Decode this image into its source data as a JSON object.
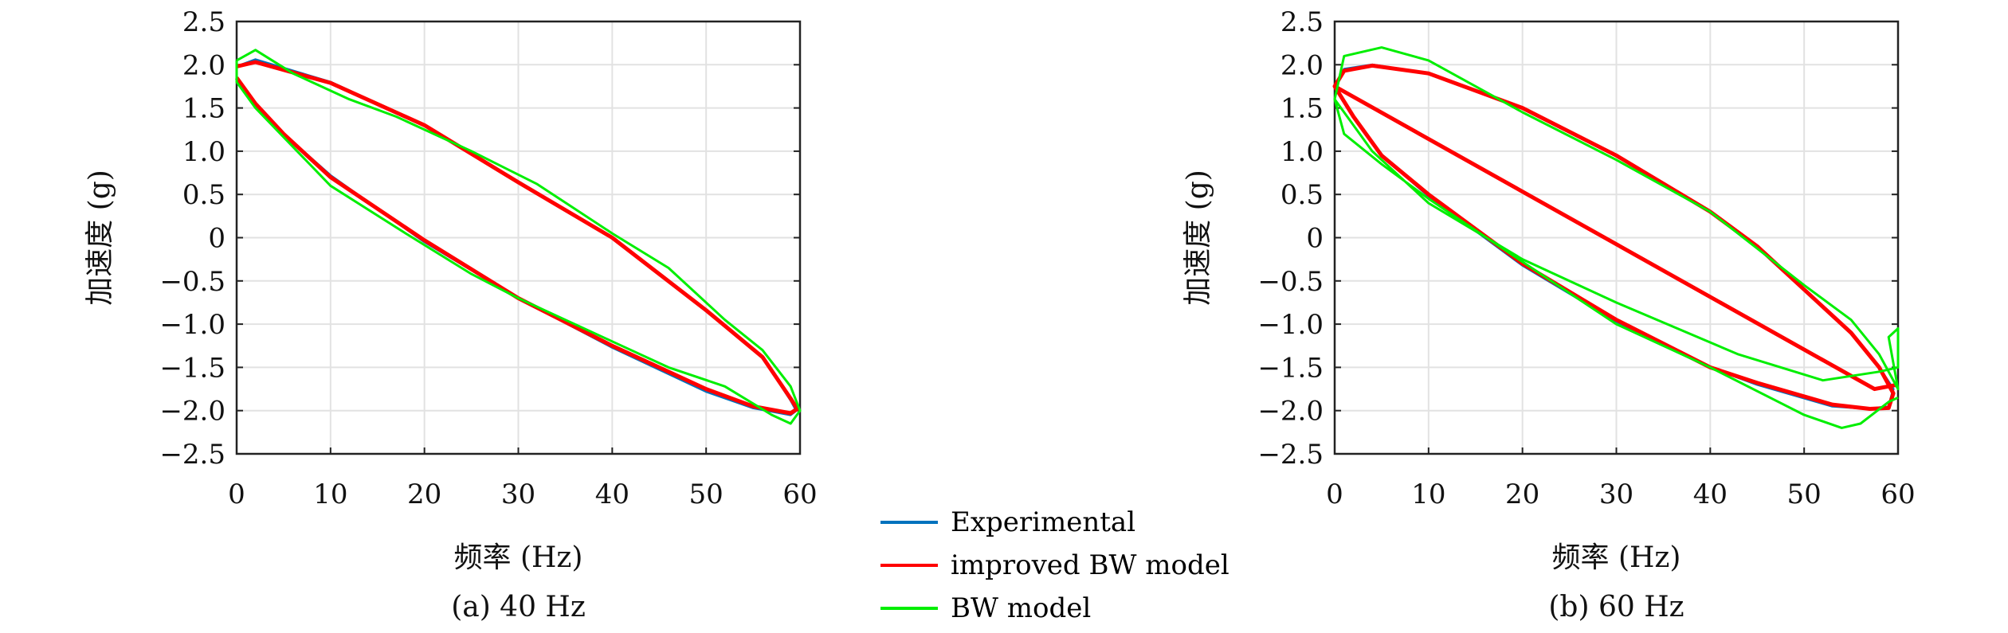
{
  "chart_data": [
    {
      "type": "line",
      "caption": "(a) 40 Hz",
      "xlabel": "频率 (Hz)",
      "ylabel": "加速度 (g)",
      "xlim": [
        0,
        60
      ],
      "ylim": [
        -2.5,
        2.5
      ],
      "xticks": [
        "0",
        "10",
        "20",
        "30",
        "40",
        "50",
        "60"
      ],
      "yticks": [
        "2.5",
        "2.0",
        "1.5",
        "1.0",
        "0.5",
        "0",
        "−0.5",
        "−1.0",
        "−1.5",
        "−2.0",
        "−2.5"
      ],
      "grid": true,
      "series": [
        {
          "name": "Experimental",
          "color": "#0072BD",
          "points": [
            [
              0,
              1.98
            ],
            [
              2,
              2.06
            ],
            [
              10,
              1.8
            ],
            [
              20,
              1.3
            ],
            [
              30,
              0.65
            ],
            [
              40,
              0.0
            ],
            [
              50,
              -0.85
            ],
            [
              56,
              -1.38
            ],
            [
              59,
              -1.88
            ],
            [
              59.6,
              -2.0
            ],
            [
              59,
              -2.05
            ],
            [
              55,
              -1.97
            ],
            [
              50,
              -1.78
            ],
            [
              40,
              -1.27
            ],
            [
              30,
              -0.7
            ],
            [
              20,
              -0.05
            ],
            [
              10,
              0.72
            ],
            [
              5,
              1.2
            ],
            [
              2,
              1.55
            ],
            [
              0,
              1.85
            ]
          ]
        },
        {
          "name": "improved BW model",
          "color": "#FF0000",
          "points": [
            [
              0,
              1.98
            ],
            [
              2,
              2.03
            ],
            [
              10,
              1.79
            ],
            [
              20,
              1.3
            ],
            [
              30,
              0.64
            ],
            [
              40,
              0.0
            ],
            [
              50,
              -0.84
            ],
            [
              56,
              -1.38
            ],
            [
              59,
              -1.86
            ],
            [
              59.7,
              -1.98
            ],
            [
              59,
              -2.03
            ],
            [
              55,
              -1.95
            ],
            [
              50,
              -1.75
            ],
            [
              40,
              -1.25
            ],
            [
              30,
              -0.7
            ],
            [
              20,
              -0.03
            ],
            [
              10,
              0.7
            ],
            [
              5,
              1.2
            ],
            [
              2,
              1.55
            ],
            [
              0,
              1.85
            ]
          ]
        },
        {
          "name": "BW model",
          "color": "#00EE00",
          "points": [
            [
              0,
              2.05
            ],
            [
              2,
              2.17
            ],
            [
              6,
              1.9
            ],
            [
              12,
              1.6
            ],
            [
              17,
              1.4
            ],
            [
              25,
              1.0
            ],
            [
              32,
              0.62
            ],
            [
              40,
              0.05
            ],
            [
              46,
              -0.35
            ],
            [
              52,
              -0.95
            ],
            [
              56,
              -1.3
            ],
            [
              59,
              -1.72
            ],
            [
              60,
              -2.0
            ],
            [
              59,
              -2.15
            ],
            [
              57,
              -2.05
            ],
            [
              52,
              -1.72
            ],
            [
              46,
              -1.5
            ],
            [
              40,
              -1.2
            ],
            [
              30,
              -0.7
            ],
            [
              25,
              -0.42
            ],
            [
              18,
              0.05
            ],
            [
              10,
              0.6
            ],
            [
              2,
              1.5
            ],
            [
              0,
              1.8
            ],
            [
              0,
              2.05
            ]
          ]
        }
      ]
    },
    {
      "type": "line",
      "caption": "(b) 60 Hz",
      "xlabel": "频率 (Hz)",
      "ylabel": "加速度 (g)",
      "xlim": [
        0,
        60
      ],
      "ylim": [
        -2.5,
        2.5
      ],
      "xticks": [
        "0",
        "10",
        "20",
        "30",
        "40",
        "50",
        "60"
      ],
      "yticks": [
        "2.5",
        "2.0",
        "1.5",
        "1.0",
        "0.5",
        "0",
        "−0.5",
        "−1.0",
        "−1.5",
        "−2.0",
        "−2.5"
      ],
      "grid": true,
      "series": [
        {
          "name": "Experimental",
          "color": "#0072BD",
          "points": [
            [
              0,
              1.75
            ],
            [
              1,
              1.95
            ],
            [
              4,
              2.0
            ],
            [
              10,
              1.9
            ],
            [
              20,
              1.5
            ],
            [
              30,
              0.95
            ],
            [
              40,
              0.3
            ],
            [
              45,
              -0.1
            ],
            [
              50,
              -0.6
            ],
            [
              55,
              -1.1
            ],
            [
              58,
              -1.5
            ],
            [
              59.5,
              -1.75
            ],
            [
              59,
              -1.95
            ],
            [
              57,
              -1.98
            ],
            [
              53,
              -1.95
            ],
            [
              45,
              -1.7
            ],
            [
              40,
              -1.5
            ],
            [
              30,
              -0.97
            ],
            [
              20,
              -0.32
            ],
            [
              10,
              0.48
            ],
            [
              5,
              0.95
            ],
            [
              2,
              1.4
            ],
            [
              0,
              1.75
            ]
          ]
        },
        {
          "name": "improved BW model",
          "color": "#FF0000",
          "points": [
            [
              0,
              1.75
            ],
            [
              1,
              1.93
            ],
            [
              4,
              1.99
            ],
            [
              10,
              1.9
            ],
            [
              20,
              1.5
            ],
            [
              30,
              0.95
            ],
            [
              40,
              0.3
            ],
            [
              45,
              -0.1
            ],
            [
              50,
              -0.6
            ],
            [
              55,
              -1.1
            ],
            [
              58,
              -1.5
            ],
            [
              59.5,
              -1.8
            ],
            [
              59,
              -1.97
            ],
            [
              57,
              -1.98
            ],
            [
              53,
              -1.93
            ],
            [
              45,
              -1.68
            ],
            [
              40,
              -1.5
            ],
            [
              30,
              -0.95
            ],
            [
              20,
              -0.3
            ],
            [
              10,
              0.5
            ],
            [
              5,
              0.95
            ],
            [
              2,
              1.4
            ],
            [
              0,
              1.75
            ],
            [
              0,
              1.75
            ],
            [
              57.5,
              -1.75
            ],
            [
              60,
              -1.7
            ]
          ]
        },
        {
          "name": "BW model",
          "color": "#00EE00",
          "points": [
            [
              0,
              1.6
            ],
            [
              1,
              2.1
            ],
            [
              5,
              2.2
            ],
            [
              10,
              2.05
            ],
            [
              15,
              1.75
            ],
            [
              20,
              1.45
            ],
            [
              30,
              0.9
            ],
            [
              40,
              0.3
            ],
            [
              50,
              -0.55
            ],
            [
              55,
              -0.95
            ],
            [
              58,
              -1.35
            ],
            [
              60,
              -1.75
            ],
            [
              59,
              -1.15
            ],
            [
              60,
              -1.05
            ],
            [
              60,
              -1.5
            ],
            [
              58,
              -1.55
            ],
            [
              52,
              -1.65
            ],
            [
              43,
              -1.35
            ],
            [
              30,
              -0.75
            ],
            [
              20,
              -0.25
            ],
            [
              10,
              0.4
            ],
            [
              4,
              1.0
            ],
            [
              1,
              1.45
            ],
            [
              0,
              1.6
            ],
            [
              1,
              1.2
            ],
            [
              5,
              0.85
            ],
            [
              10,
              0.45
            ],
            [
              20,
              -0.28
            ],
            [
              30,
              -1.0
            ],
            [
              40,
              -1.5
            ],
            [
              50,
              -2.05
            ],
            [
              54,
              -2.2
            ],
            [
              56,
              -2.15
            ],
            [
              59,
              -1.9
            ],
            [
              60,
              -1.85
            ]
          ]
        }
      ]
    }
  ],
  "legend": {
    "placement": "bottom-center",
    "entries": [
      {
        "label": "Experimental",
        "color": "#0072BD"
      },
      {
        "label": "improved BW model",
        "color": "#FF0000"
      },
      {
        "label": "BW model",
        "color": "#00EE00"
      }
    ]
  }
}
